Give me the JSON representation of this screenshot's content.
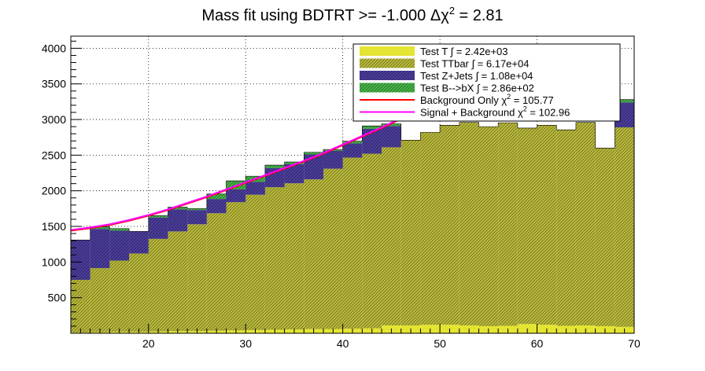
{
  "chart_data": {
    "type": "bar",
    "title": "Mass fit using BDTRT >= -1.000 Δχ",
    "title_sup": "2",
    "title_tail": " = 2.81",
    "xlim": [
      12,
      70
    ],
    "ylim": [
      0,
      4170
    ],
    "x_ticks": [
      20,
      30,
      40,
      50,
      60,
      70
    ],
    "y_ticks": [
      500,
      1000,
      1500,
      2000,
      2500,
      3000,
      3500,
      4000
    ],
    "grid": true,
    "legend_position": "top-right",
    "bin_edges": [
      12,
      14,
      16,
      18,
      20,
      22,
      24,
      26,
      28,
      30,
      32,
      34,
      36,
      38,
      40,
      42,
      44,
      46,
      48,
      50,
      52,
      54,
      56,
      58,
      60,
      62,
      64,
      66,
      68,
      70
    ],
    "series": [
      {
        "name": "Test T",
        "integral": "∫ = 2.42e+03",
        "color": "#e4e432",
        "values": [
          10,
          15,
          20,
          20,
          25,
          30,
          30,
          35,
          40,
          45,
          50,
          55,
          60,
          60,
          65,
          70,
          110,
          110,
          120,
          120,
          110,
          100,
          105,
          130,
          120,
          105,
          110,
          100,
          90
        ]
      },
      {
        "name": "Test TTbar",
        "integral": "∫ = 6.17e+04",
        "color": "#b9b93a",
        "values": [
          740,
          900,
          1000,
          1100,
          1300,
          1400,
          1500,
          1650,
          1800,
          1900,
          2000,
          2050,
          2100,
          2250,
          2400,
          2450,
          2500,
          2600,
          2700,
          2800,
          2850,
          2800,
          2850,
          2750,
          2800,
          2750,
          2850,
          2500,
          2800
        ]
      },
      {
        "name": "Test Z+Jets",
        "integral": "∫ = 1.08e+04",
        "color": "#4b3d9c",
        "values": [
          560,
          550,
          420,
          310,
          300,
          310,
          200,
          200,
          180,
          180,
          270,
          270,
          350,
          250,
          200,
          350,
          300,
          0,
          0,
          0,
          0,
          0,
          0,
          0,
          0,
          0,
          0,
          0,
          350
        ]
      },
      {
        "name": "Test B-->bX",
        "integral": "∫ = 2.86e+02",
        "color": "#46b446",
        "values": [
          0,
          30,
          30,
          0,
          25,
          30,
          20,
          70,
          120,
          80,
          40,
          30,
          30,
          20,
          30,
          40,
          30,
          0,
          0,
          0,
          0,
          0,
          0,
          0,
          0,
          0,
          0,
          0,
          40
        ]
      }
    ],
    "fits": [
      {
        "name": "Background Only χ",
        "sup": "2",
        "tail": " = 105.77",
        "color": "#ff0000",
        "x": [
          12,
          14,
          16,
          18,
          20,
          22,
          24,
          26,
          28,
          30,
          32,
          34,
          36,
          38,
          40,
          42,
          44,
          46,
          48
        ],
        "y": [
          1440,
          1475,
          1520,
          1580,
          1650,
          1730,
          1820,
          1910,
          2010,
          2110,
          2210,
          2310,
          2410,
          2520,
          2640,
          2760,
          2880,
          3010,
          3140
        ]
      },
      {
        "name": "Signal + Background χ",
        "sup": "2",
        "tail": " = 102.96",
        "color": "#ff00ff",
        "x": [
          12,
          14,
          16,
          18,
          20,
          22,
          24,
          26,
          28,
          30,
          32,
          34,
          36,
          38,
          40,
          42,
          44,
          46,
          48
        ],
        "y": [
          1450,
          1485,
          1530,
          1590,
          1660,
          1740,
          1830,
          1920,
          2020,
          2120,
          2220,
          2320,
          2420,
          2530,
          2650,
          2770,
          2890,
          3020,
          3150
        ]
      }
    ]
  }
}
